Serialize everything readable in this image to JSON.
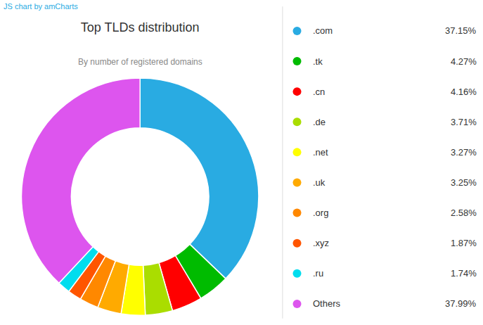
{
  "chart_data": {
    "type": "pie",
    "title": "Top TLDs distribution",
    "subtitle": "By number of registered domains",
    "annotations": [
      "JS chart by amCharts"
    ],
    "categories": [
      ".com",
      ".tk",
      ".cn",
      ".de",
      ".net",
      ".uk",
      ".org",
      ".xyz",
      ".ru",
      "Others"
    ],
    "values": [
      37.15,
      4.27,
      4.16,
      3.71,
      3.27,
      3.25,
      2.58,
      1.87,
      1.74,
      37.99
    ],
    "value_labels": [
      "37.15%",
      "4.27%",
      "4.16%",
      "3.71%",
      "3.27%",
      "3.25%",
      "2.58%",
      "1.87%",
      "1.74%",
      "37.99%"
    ],
    "colors": [
      "#29ABE2",
      "#00BB00",
      "#FF0000",
      "#AADD00",
      "#FFFF00",
      "#FFAA00",
      "#FF8800",
      "#FF5500",
      "#00DDEE",
      "#DD55EE"
    ],
    "legend": "right"
  }
}
